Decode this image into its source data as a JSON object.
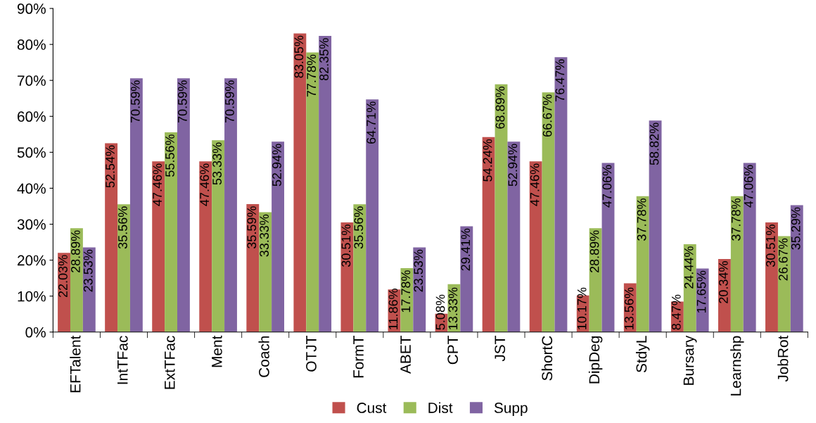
{
  "chart_data": {
    "type": "bar",
    "categories": [
      "EFTalent",
      "IntTFac",
      "ExtTFac",
      "Ment",
      "Coach",
      "OTJT",
      "FormT",
      "ABET",
      "CPT",
      "JST",
      "ShortC",
      "DipDeg",
      "StdyL",
      "Bursary",
      "Learnshp",
      "JobRot"
    ],
    "series": [
      {
        "name": "Cust",
        "color": "#c0504d",
        "values": [
          22.03,
          52.54,
          47.46,
          47.46,
          35.59,
          83.05,
          30.51,
          11.86,
          5.08,
          54.24,
          47.46,
          10.17,
          13.56,
          8.47,
          20.34,
          30.51
        ],
        "value_labels": [
          "22.03%",
          "52.54%",
          "47.46%",
          "47.46%",
          "35.59%",
          "83.05%",
          "30.51%",
          "11.86%",
          "5.08%",
          "54.24%",
          "47.46%",
          "10.17%",
          "13.56%",
          "8.47%",
          "20.34%",
          "30.51%"
        ]
      },
      {
        "name": "Dist",
        "color": "#9bbb59",
        "values": [
          28.89,
          35.56,
          55.56,
          53.33,
          33.33,
          77.78,
          35.56,
          17.78,
          13.33,
          68.89,
          66.67,
          28.89,
          37.78,
          24.44,
          37.78,
          26.67
        ],
        "value_labels": [
          "28.89%",
          "35.56%",
          "55.56%",
          "53.33%",
          "33.33%",
          "77.78%",
          "35.56%",
          "17.78%",
          "13.33%",
          "68.89%",
          "66.67%",
          "28.89%",
          "37.78%",
          "24.44%",
          "37.78%",
          "26.67%"
        ]
      },
      {
        "name": "Supp",
        "color": "#8064a2",
        "values": [
          23.53,
          70.59,
          70.59,
          70.59,
          52.94,
          82.35,
          64.71,
          23.53,
          29.41,
          52.94,
          76.47,
          47.06,
          58.82,
          17.65,
          47.06,
          35.29
        ],
        "value_labels": [
          "23.53%",
          "70.59%",
          "70.59%",
          "70.59%",
          "52.94%",
          "82.35%",
          "64.71%",
          "23.53%",
          "29.41%",
          "52.94%",
          "76.47%",
          "47.06%",
          "58.82%",
          "17.65%",
          "47.06%",
          "35.29%"
        ]
      }
    ],
    "ylim": [
      0,
      90
    ],
    "yticks": [
      {
        "value": 0,
        "label": "0%"
      },
      {
        "value": 10,
        "label": "10%"
      },
      {
        "value": 20,
        "label": "20%"
      },
      {
        "value": 30,
        "label": "30%"
      },
      {
        "value": 40,
        "label": "40%"
      },
      {
        "value": 50,
        "label": "50%"
      },
      {
        "value": 60,
        "label": "60%"
      },
      {
        "value": 70,
        "label": "70%"
      },
      {
        "value": 80,
        "label": "80%"
      },
      {
        "value": 90,
        "label": "90%"
      }
    ],
    "grid": false,
    "legend": "bottom"
  }
}
